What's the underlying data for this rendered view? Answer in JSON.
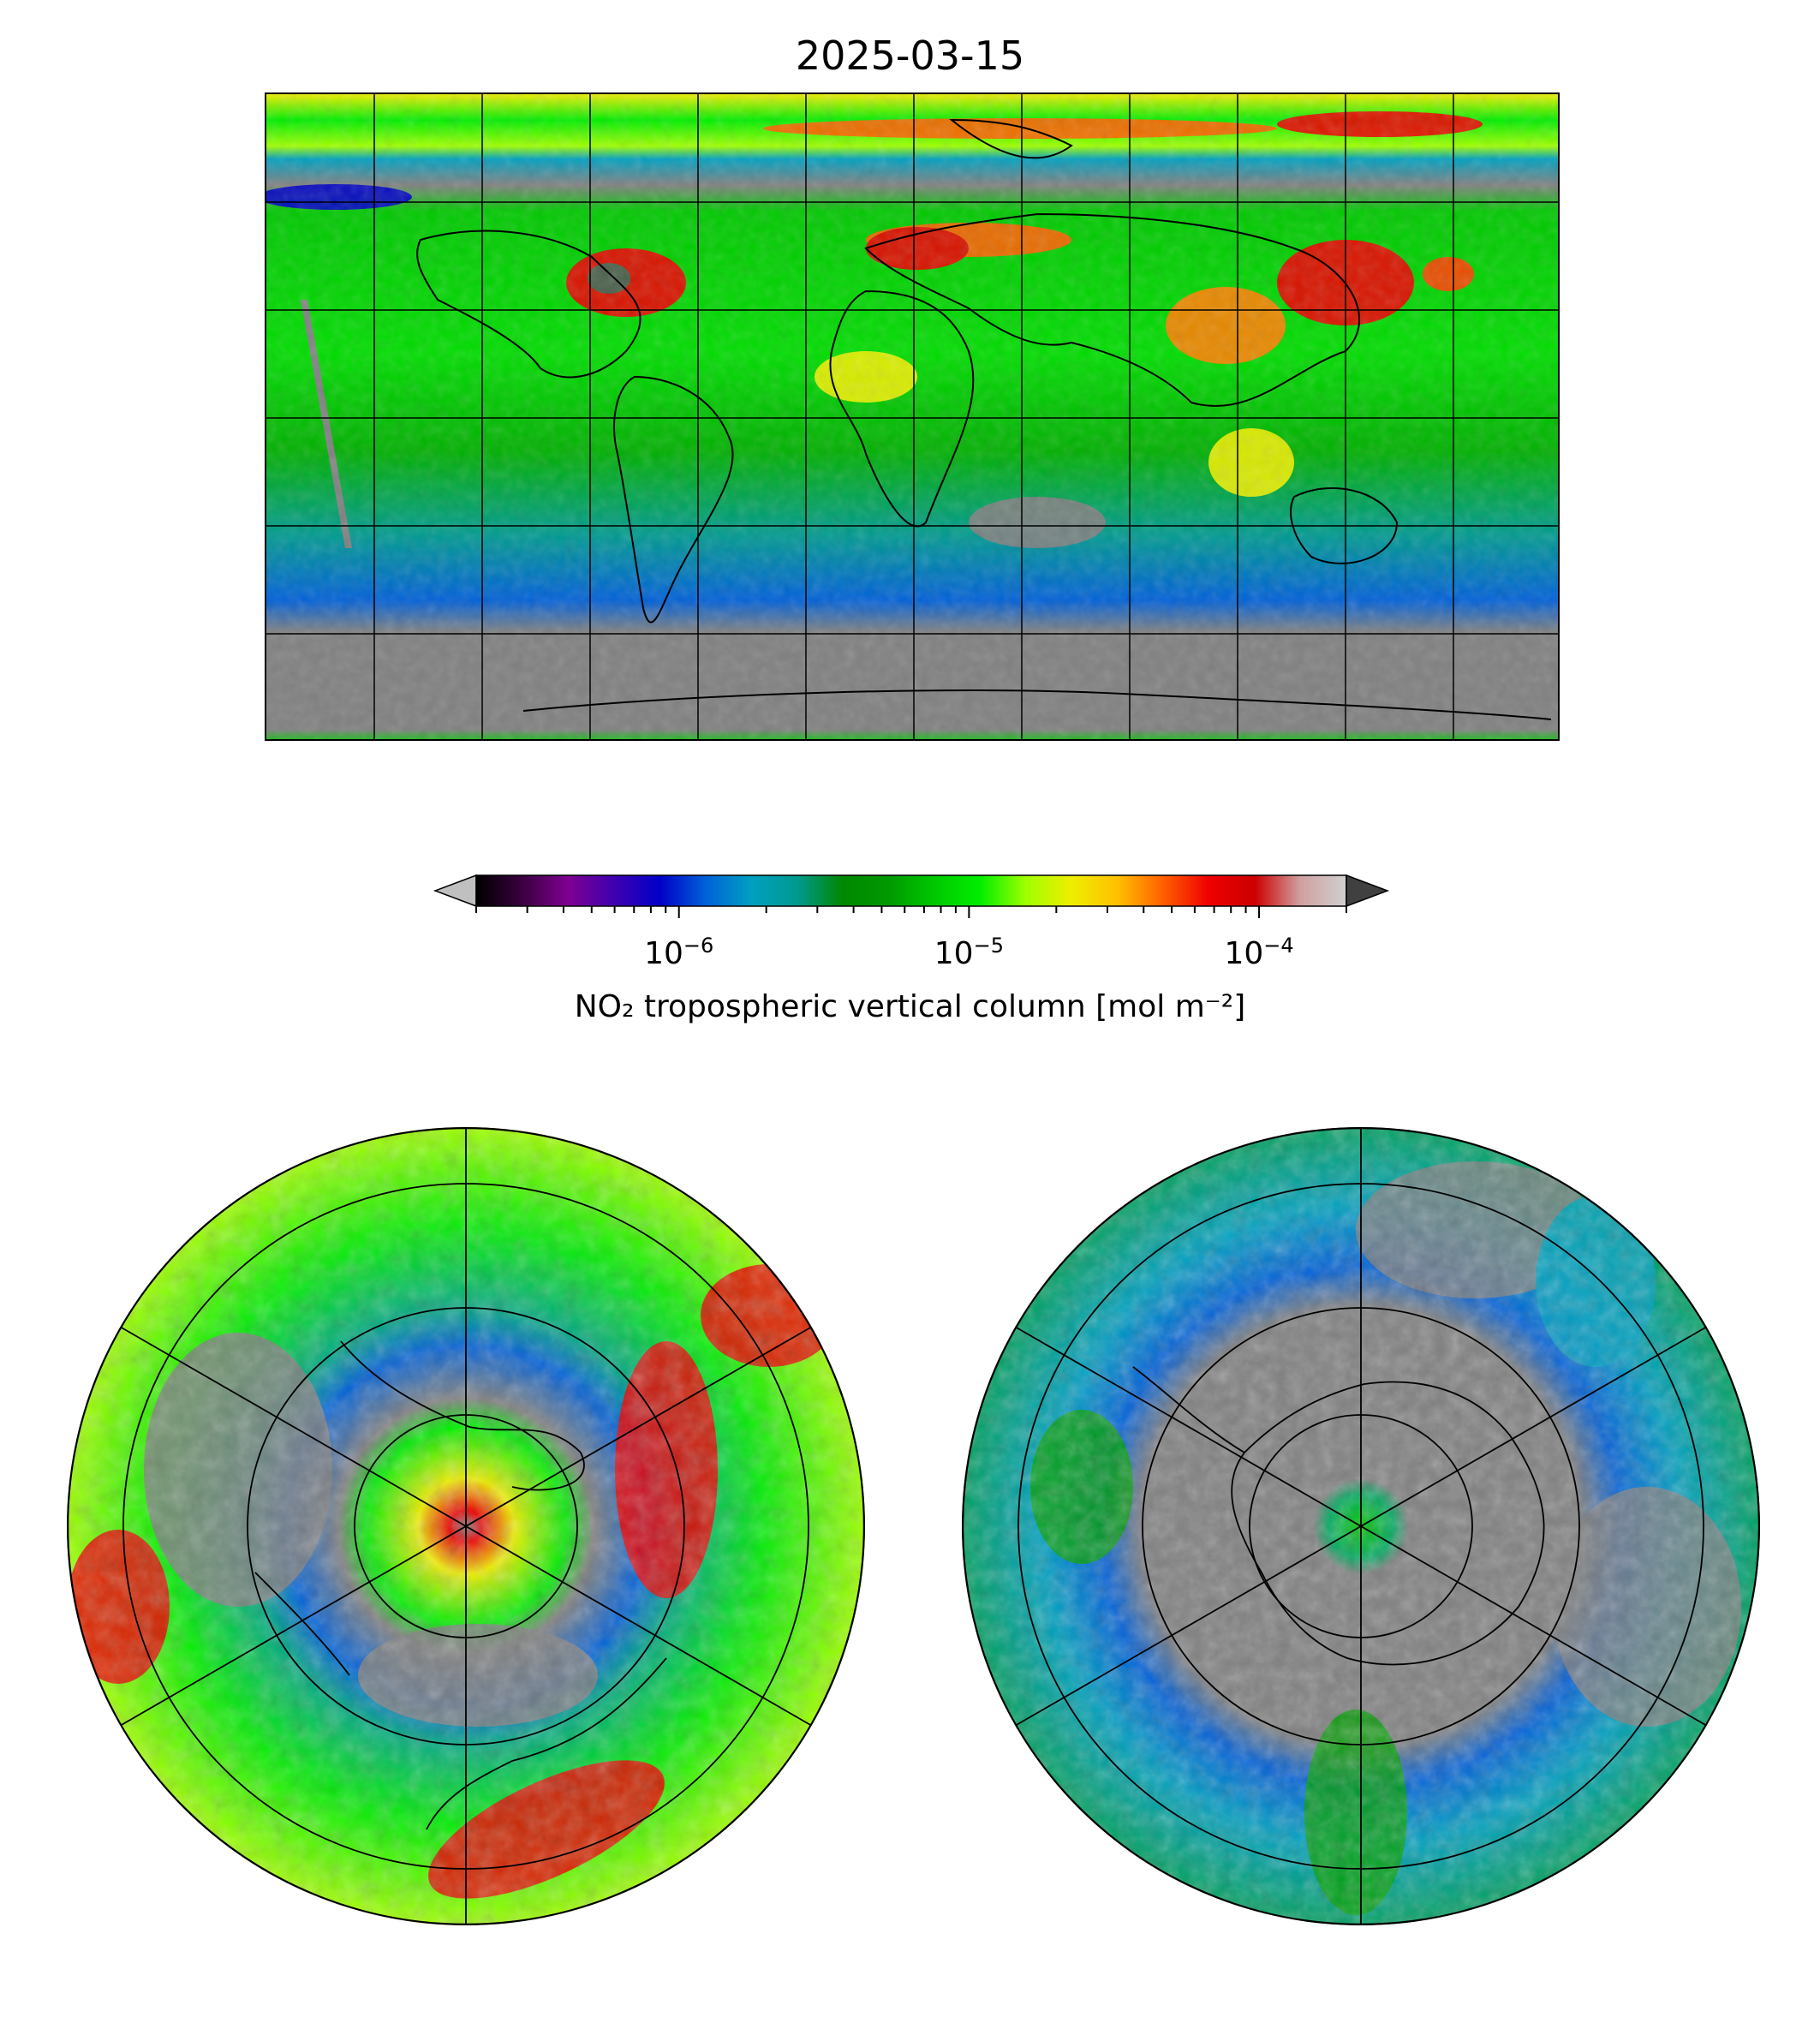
{
  "title": "2025-03-15",
  "colorbar": {
    "label": "NO₂ tropospheric vertical column [mol m⁻²]",
    "scale": "log",
    "range": [
      2e-07,
      0.0002
    ],
    "extend": "both",
    "ticks": [
      {
        "value": 1e-06,
        "base": "10",
        "exp": "−6"
      },
      {
        "value": 1e-05,
        "base": "10",
        "exp": "−5"
      },
      {
        "value": 0.0001,
        "base": "10",
        "exp": "−4"
      }
    ],
    "colors": [
      "#000000",
      "#3a003f",
      "#7f0090",
      "#4000b0",
      "#0000c8",
      "#0060d8",
      "#00a0c0",
      "#009a90",
      "#008800",
      "#009900",
      "#00c800",
      "#00ee00",
      "#a0ff00",
      "#eeee00",
      "#ffc000",
      "#ff6000",
      "#ee0000",
      "#cc0000",
      "#d0a0a0",
      "#d0d0d0"
    ],
    "under_color": "#c0c0c0",
    "over_color": "#404040"
  },
  "maps": {
    "global": {
      "projection": "plate-carree",
      "no_data_color": "#808080"
    },
    "north": {
      "projection": "north-polar-stereographic"
    },
    "south": {
      "projection": "south-polar-stereographic"
    }
  }
}
